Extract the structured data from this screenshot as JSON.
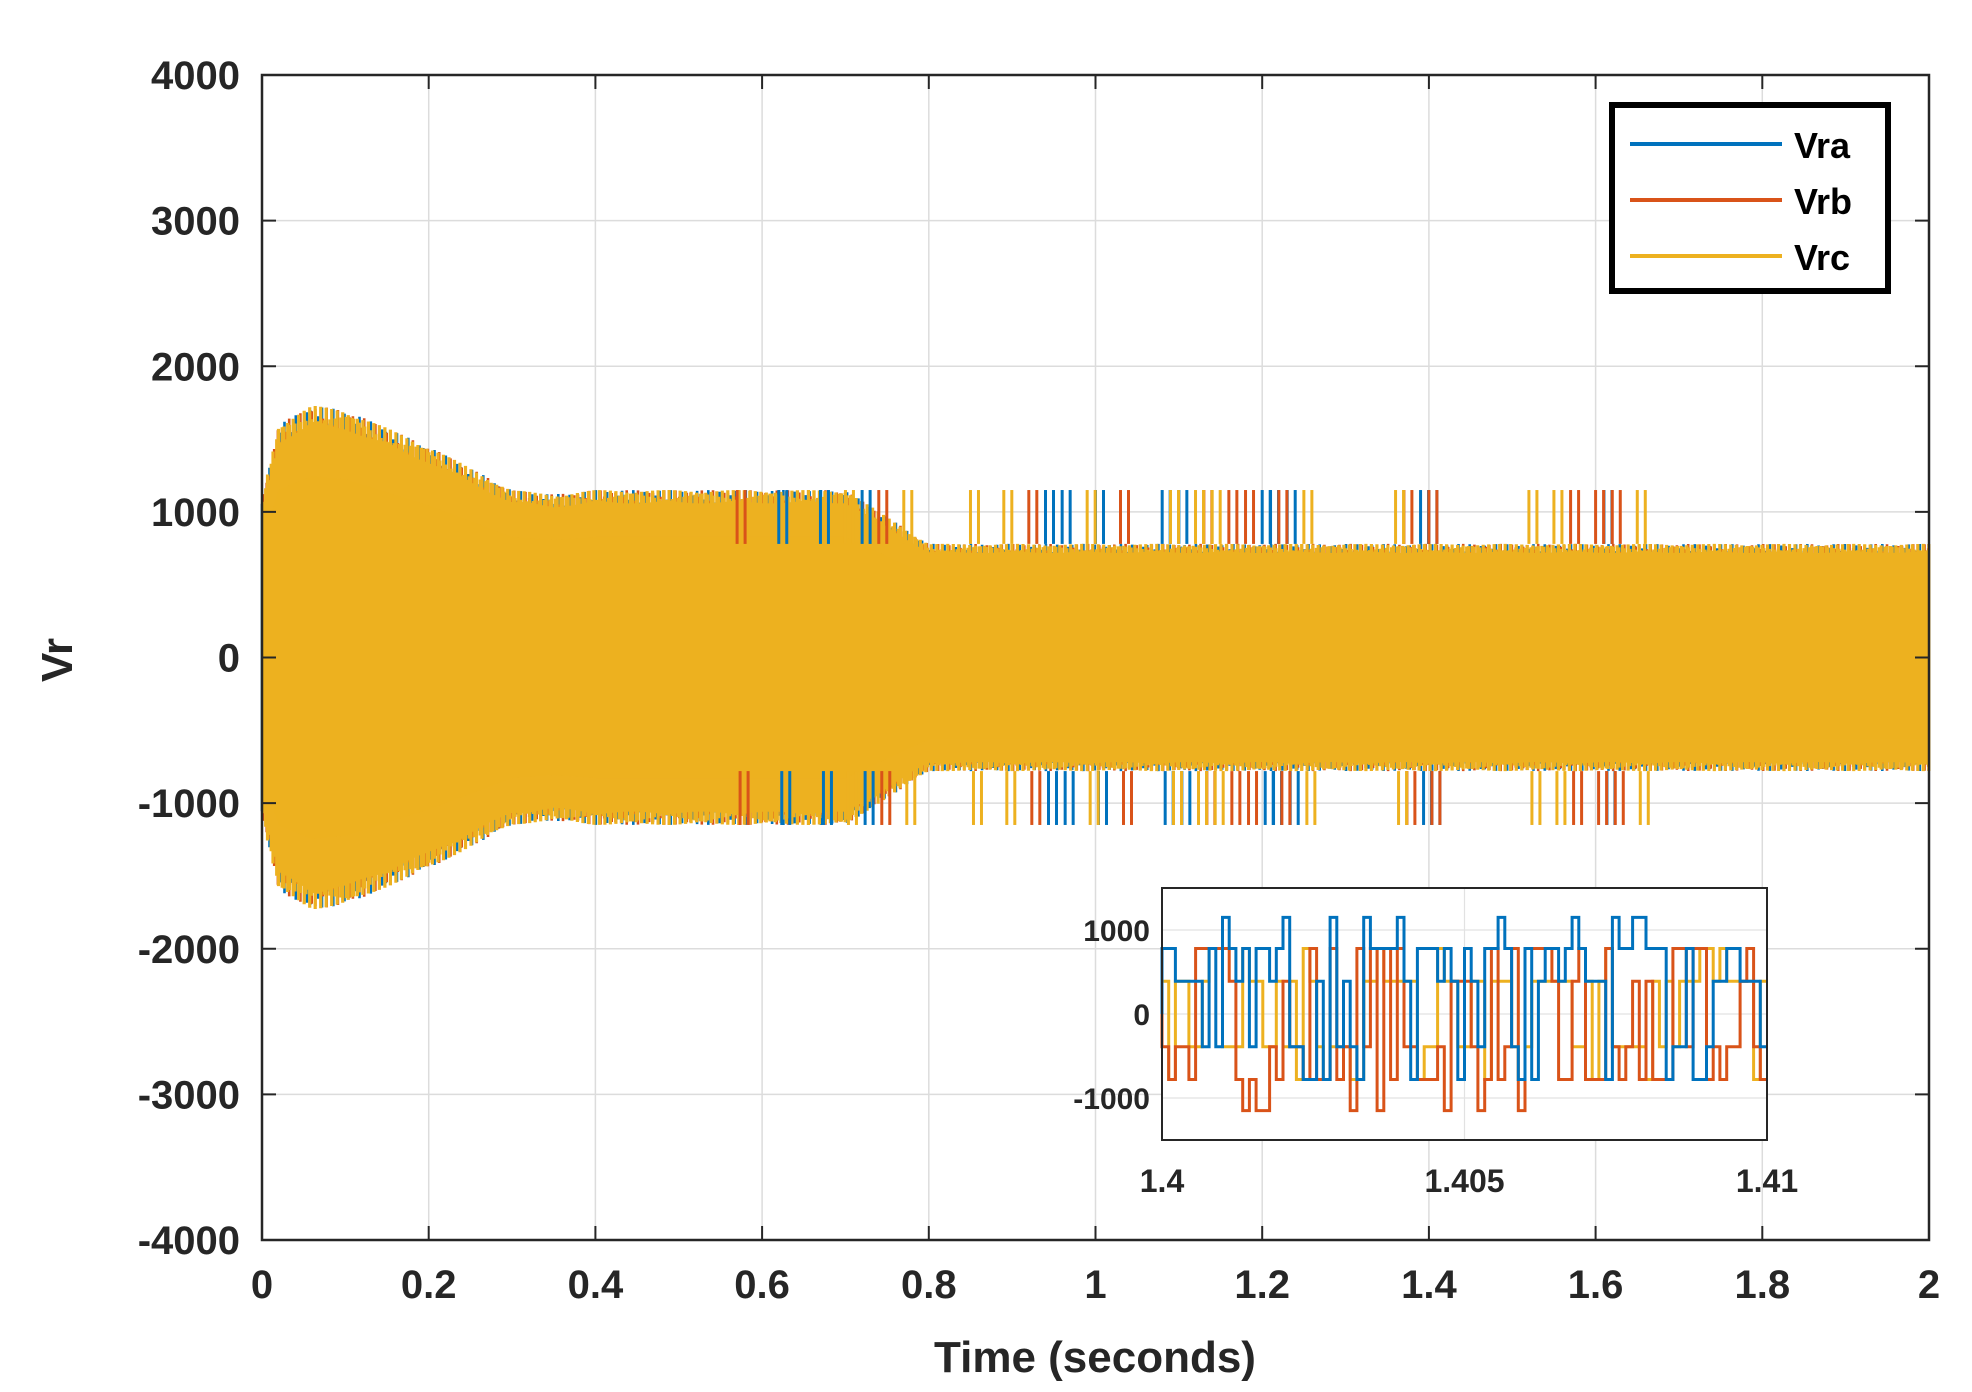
{
  "chart_data": [
    {
      "type": "line",
      "title": "",
      "xlabel": "Time (seconds)",
      "ylabel": "Vr",
      "xlim": [
        0,
        2
      ],
      "ylim": [
        -4000,
        4000
      ],
      "xticks": [
        0,
        0.2,
        0.4,
        0.6,
        0.8,
        1,
        1.2,
        1.4,
        1.6,
        1.8,
        2
      ],
      "xtick_labels": [
        "0",
        "0.2",
        "0.4",
        "0.6",
        "0.8",
        "1",
        "1.2",
        "1.4",
        "1.6",
        "1.8",
        "2"
      ],
      "yticks": [
        4000,
        3000,
        2000,
        1000,
        0,
        -1000,
        -2000,
        -3000,
        -4000
      ],
      "ytick_labels": [
        "4000",
        "3000",
        "2000",
        "1000",
        "0",
        "-1000",
        "-2000",
        "-3000",
        "-4000"
      ],
      "grid": true,
      "legend_position": "top-right",
      "series": [
        {
          "name": "Vra",
          "color": "#0072BD"
        },
        {
          "name": "Vrb",
          "color": "#D95319"
        },
        {
          "name": "Vrc",
          "color": "#EDB120"
        }
      ],
      "envelope": {
        "t": [
          0,
          0.02,
          0.06,
          0.1,
          0.2,
          0.3,
          0.35,
          0.4,
          0.6,
          0.7,
          0.8,
          2
        ],
        "peak": [
          1100,
          1600,
          1730,
          1700,
          1450,
          1150,
          1120,
          1150,
          1150,
          1150,
          780,
          780
        ]
      },
      "spikes": {
        "Vra": [
          0.62,
          0.67,
          0.72,
          0.94,
          0.96,
          1.0,
          1.08,
          1.1,
          1.2,
          1.21,
          1.23,
          1.39,
          1.4,
          1.61
        ],
        "Vrb": [
          0.57,
          0.74,
          0.92,
          1.03,
          1.13,
          1.16,
          1.18,
          1.22,
          1.37,
          1.4,
          1.57,
          1.6,
          1.62
        ],
        "Vrc": [
          0.7,
          0.77,
          0.85,
          0.89,
          0.99,
          1.09,
          1.12,
          1.14,
          1.25,
          1.36,
          1.52,
          1.55,
          1.65
        ]
      },
      "spike_amplitude": 1150
    },
    {
      "type": "line",
      "title": "",
      "xlabel": "",
      "ylabel": "",
      "xlim": [
        1.4,
        1.41
      ],
      "ylim": [
        -1500,
        1500
      ],
      "xticks": [
        1.4,
        1.405,
        1.41
      ],
      "xtick_labels": [
        "1.4",
        "1.405",
        "1.41"
      ],
      "yticks": [
        1000,
        0,
        -1000
      ],
      "ytick_labels": [
        "1000",
        "0",
        "-1000"
      ],
      "grid": true,
      "series": [
        {
          "name": "Vra",
          "color": "#0072BD"
        },
        {
          "name": "Vrb",
          "color": "#D95319"
        },
        {
          "name": "Vrc",
          "color": "#EDB120"
        }
      ],
      "levels": [
        -1150,
        -780,
        -390,
        0,
        390,
        780,
        1150
      ]
    }
  ]
}
